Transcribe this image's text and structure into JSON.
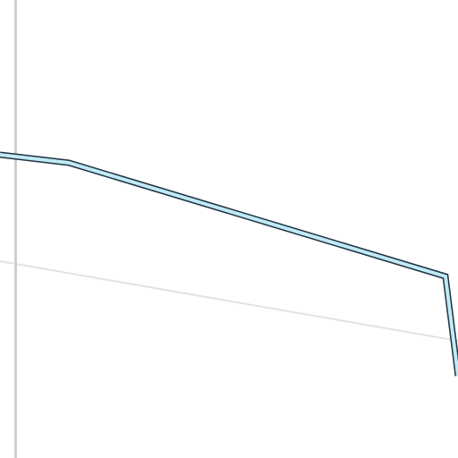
{
  "map": {
    "background_color": "#ffffff",
    "gridline_vertical_color": "#cfcfcf",
    "gridline_diagonal_color": "#e3e3e3",
    "route": {
      "fill_color": "#bfeaf6",
      "outline_color": "#1f3340"
    }
  }
}
